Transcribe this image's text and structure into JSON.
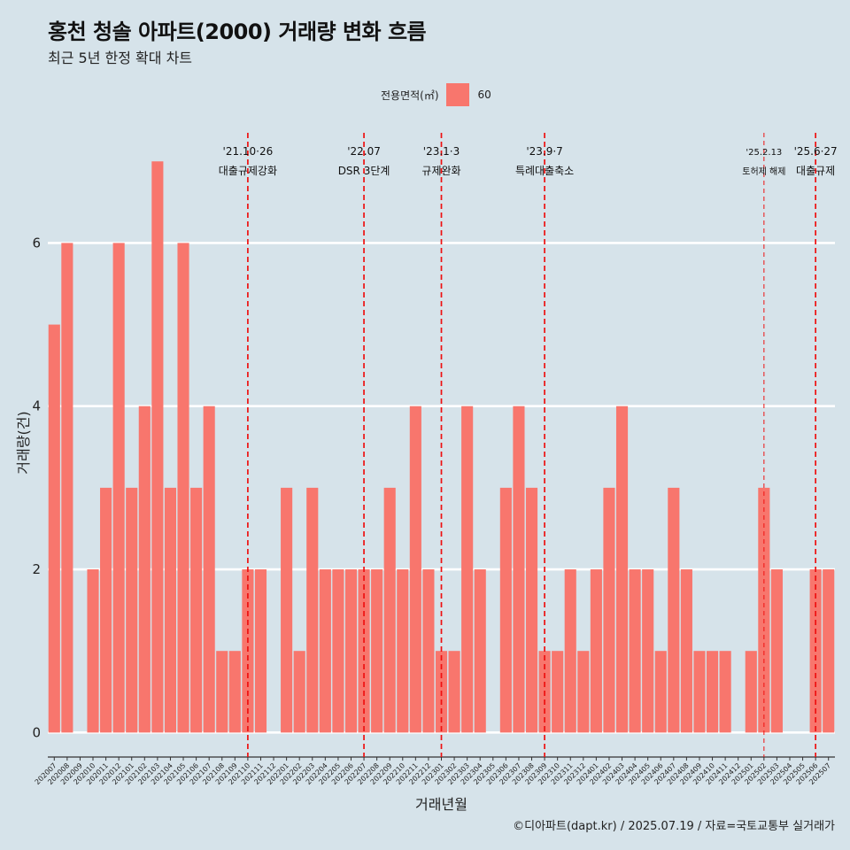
{
  "chart_data": {
    "type": "bar",
    "title": "홍천 청솔 아파트(2000) 거래량 변화 흐름",
    "subtitle": "최근 5년 한정 확대 차트",
    "xlabel": "거래년월",
    "ylabel": "거래량(건)",
    "ylim": [
      -0.3,
      7.35
    ],
    "yticks": [
      0,
      2,
      4,
      6
    ],
    "grid": "horizontal, white",
    "legend": {
      "title": "전용면적(㎡)",
      "position": "top",
      "entries": [
        "60"
      ]
    },
    "bar_color": "#f8766d",
    "categories": [
      "202007",
      "202008",
      "202009",
      "202010",
      "202011",
      "202012",
      "202101",
      "202102",
      "202103",
      "202104",
      "202105",
      "202106",
      "202107",
      "202108",
      "202109",
      "202110",
      "202111",
      "202112",
      "202201",
      "202202",
      "202203",
      "202204",
      "202205",
      "202206",
      "202207",
      "202208",
      "202209",
      "202210",
      "202211",
      "202212",
      "202301",
      "202302",
      "202303",
      "202304",
      "202305",
      "202306",
      "202307",
      "202308",
      "202309",
      "202310",
      "202311",
      "202312",
      "202401",
      "202402",
      "202403",
      "202404",
      "202405",
      "202406",
      "202407",
      "202408",
      "202409",
      "202410",
      "202411",
      "202412",
      "202501",
      "202502",
      "202503",
      "202504",
      "202505",
      "202506",
      "202507"
    ],
    "series": [
      {
        "name": "60",
        "values": [
          5,
          6,
          0,
          2,
          3,
          6,
          3,
          4,
          7,
          3,
          6,
          3,
          4,
          1,
          1,
          2,
          2,
          0,
          3,
          1,
          3,
          2,
          2,
          2,
          2,
          2,
          3,
          2,
          4,
          2,
          1,
          1,
          4,
          2,
          0,
          3,
          4,
          3,
          1,
          1,
          2,
          1,
          2,
          3,
          4,
          2,
          2,
          1,
          3,
          2,
          1,
          1,
          1,
          0,
          1,
          3,
          2,
          0,
          0,
          2,
          2
        ]
      }
    ],
    "annotations": [
      {
        "category": "202110",
        "line1": "'21.10·26",
        "line2": "대출규제강화",
        "style": "dashed",
        "small": false
      },
      {
        "category": "202207",
        "line1": "'22.07",
        "line2": "DSR 3단계",
        "style": "dashed",
        "small": false
      },
      {
        "category": "202301",
        "line1": "'23.1·3",
        "line2": "규제완화",
        "style": "dashed",
        "small": false
      },
      {
        "category": "202309",
        "line1": "'23.9·7",
        "line2": "특례대출축소",
        "style": "dashed",
        "small": false
      },
      {
        "category": "202502",
        "line1": "'25.2.13",
        "line2": "토허제 해제",
        "style": "thin-dashed",
        "small": true
      },
      {
        "category": "202506",
        "line1": "'25.6·27",
        "line2": "대출규제",
        "style": "dashed",
        "small": false
      }
    ]
  },
  "caption": "©디아파트(dapt.kr) / 2025.07.19 / 자료=국토교통부 실거래가"
}
